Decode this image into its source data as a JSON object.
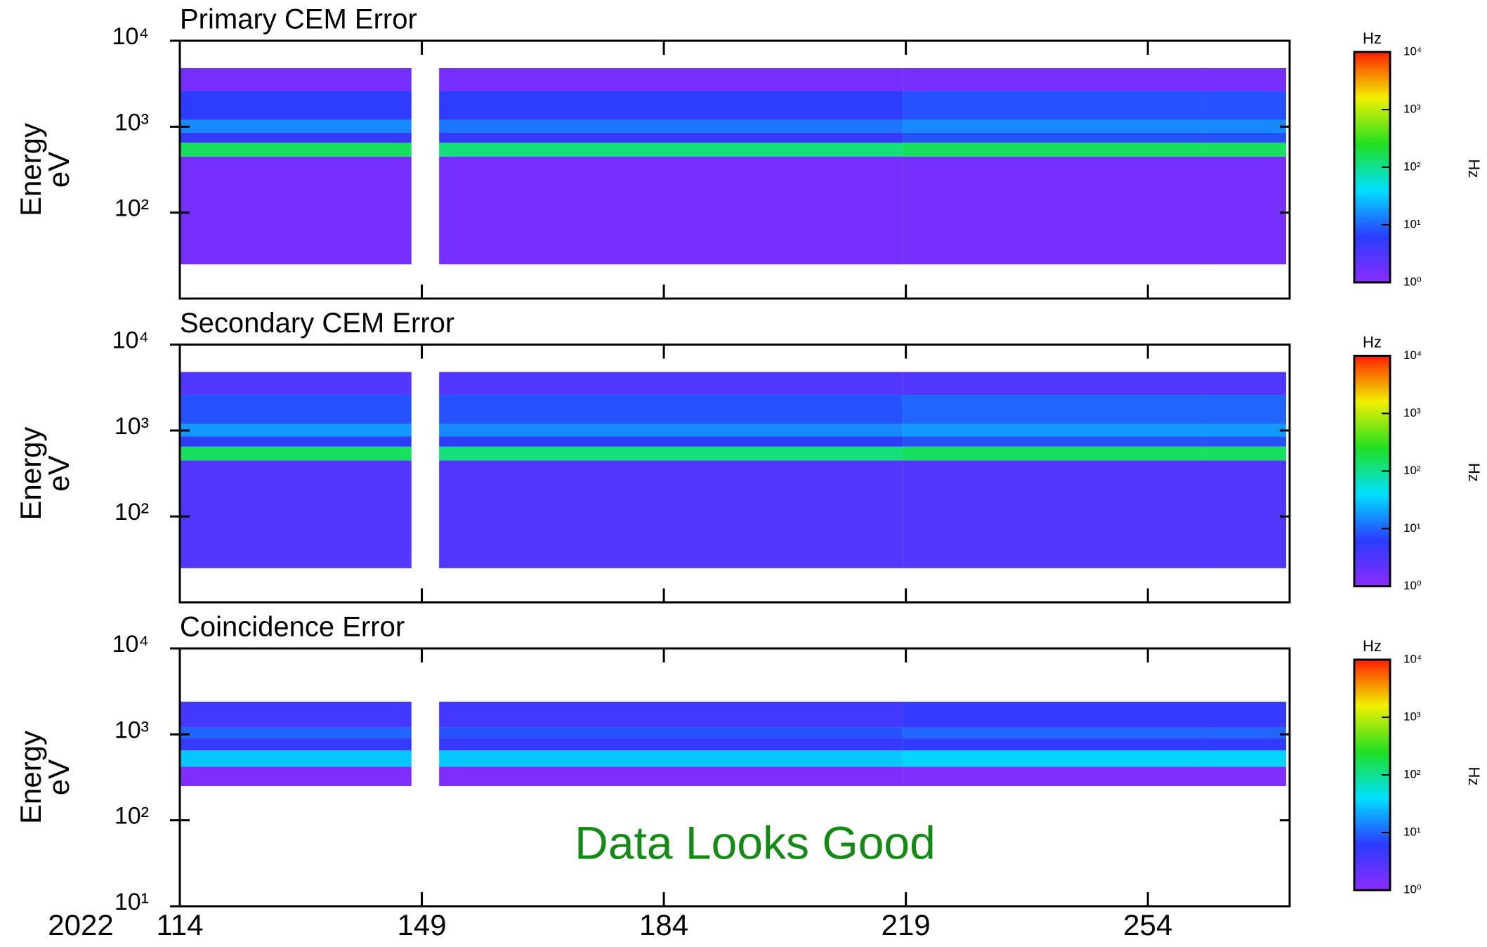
{
  "colormap": [
    "#8a2cff",
    "#2a3cff",
    "#00e0ff",
    "#20e020",
    "#f0f000",
    "#ff2000"
  ],
  "chart_data": [
    {
      "type": "heatmap",
      "title": "Primary CEM Error",
      "ylabel": [
        "Energy",
        "eV"
      ],
      "xlim": [
        114,
        274.5
      ],
      "xticks": [
        114,
        149,
        184,
        219,
        254
      ],
      "show_xtick_labels": false,
      "ylim": [
        10,
        10000
      ],
      "log_y": true,
      "yticks": [
        {
          "value": 100,
          "label": "10²"
        },
        {
          "value": 1000,
          "label": "10³"
        },
        {
          "value": 10000,
          "label": "10⁴"
        }
      ],
      "x_edges": [
        114,
        147.5,
        151.5,
        218.5,
        262,
        274
      ],
      "y_edges": [
        25,
        450,
        650,
        850,
        1200,
        2600,
        4800
      ],
      "z": [
        [
          1.5,
          null,
          1.5,
          1.5,
          1.5
        ],
        [
          150,
          null,
          120,
          150,
          150
        ],
        [
          5,
          null,
          5,
          8,
          8
        ],
        [
          15,
          null,
          12,
          15,
          15
        ],
        [
          6,
          null,
          6,
          8,
          8
        ],
        [
          1.5,
          null,
          1.5,
          1.5,
          1.5
        ]
      ],
      "colorbar": {
        "label": "Hz",
        "side_label": "Hz",
        "clim": [
          1,
          10000
        ],
        "cticks": [
          {
            "value": 1,
            "label": "10⁰"
          },
          {
            "value": 10,
            "label": "10¹"
          },
          {
            "value": 100,
            "label": "10²"
          },
          {
            "value": 1000,
            "label": "10³"
          },
          {
            "value": 10000,
            "label": "10⁴"
          }
        ]
      }
    },
    {
      "type": "heatmap",
      "title": "Secondary CEM Error",
      "ylabel": [
        "Energy",
        "eV"
      ],
      "xlim": [
        114,
        274.5
      ],
      "xticks": [
        114,
        149,
        184,
        219,
        254
      ],
      "show_xtick_labels": false,
      "ylim": [
        10,
        10000
      ],
      "log_y": true,
      "yticks": [
        {
          "value": 100,
          "label": "10²"
        },
        {
          "value": 1000,
          "label": "10³"
        },
        {
          "value": 10000,
          "label": "10⁴"
        }
      ],
      "x_edges": [
        114,
        147.5,
        151.5,
        218.5,
        262,
        274
      ],
      "y_edges": [
        25,
        450,
        650,
        850,
        1200,
        2600,
        4800
      ],
      "z": [
        [
          3,
          null,
          3,
          3,
          3
        ],
        [
          150,
          null,
          120,
          150,
          150
        ],
        [
          6,
          null,
          6,
          8,
          8
        ],
        [
          18,
          null,
          15,
          18,
          18
        ],
        [
          8,
          null,
          8,
          10,
          10
        ],
        [
          3,
          null,
          3,
          3,
          3
        ]
      ],
      "colorbar": {
        "label": "Hz",
        "side_label": "Hz",
        "clim": [
          1,
          10000
        ],
        "cticks": [
          {
            "value": 1,
            "label": "10⁰"
          },
          {
            "value": 10,
            "label": "10¹"
          },
          {
            "value": 100,
            "label": "10²"
          },
          {
            "value": 1000,
            "label": "10³"
          },
          {
            "value": 10000,
            "label": "10⁴"
          }
        ]
      }
    },
    {
      "type": "heatmap",
      "title": "Coincidence Error",
      "ylabel": [
        "Energy",
        "eV"
      ],
      "xlim": [
        114,
        274.5
      ],
      "xticks": [
        114,
        149,
        184,
        219,
        254
      ],
      "show_xtick_labels": true,
      "year_label": "2022",
      "ylim": [
        10,
        10000
      ],
      "log_y": true,
      "yticks": [
        {
          "value": 10,
          "label": "10¹"
        },
        {
          "value": 100,
          "label": "10²"
        },
        {
          "value": 1000,
          "label": "10³"
        },
        {
          "value": 10000,
          "label": "10⁴"
        }
      ],
      "x_edges": [
        114,
        147.5,
        151.5,
        218.5,
        262,
        274
      ],
      "y_edges": [
        250,
        420,
        650,
        900,
        1200,
        2400
      ],
      "z": [
        [
          1.2,
          null,
          1.2,
          1.2,
          1.2
        ],
        [
          30,
          null,
          30,
          35,
          35
        ],
        [
          5,
          null,
          5,
          6,
          6
        ],
        [
          10,
          null,
          8,
          10,
          10
        ],
        [
          4,
          null,
          4,
          5,
          5
        ]
      ],
      "annotation": "Data Looks Good",
      "colorbar": {
        "label": "Hz",
        "side_label": "Hz",
        "clim": [
          1,
          10000
        ],
        "cticks": [
          {
            "value": 1,
            "label": "10⁰"
          },
          {
            "value": 10,
            "label": "10¹"
          },
          {
            "value": 100,
            "label": "10²"
          },
          {
            "value": 1000,
            "label": "10³"
          },
          {
            "value": 10000,
            "label": "10⁴"
          }
        ]
      }
    }
  ]
}
